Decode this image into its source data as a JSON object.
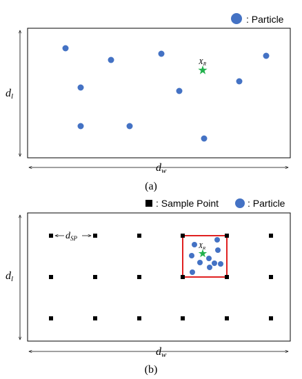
{
  "colors": {
    "particle": "#4472C4",
    "target_star": "#22B14C",
    "sample_point": "#000000",
    "highlight_box": "#E02020",
    "frame": "#000000"
  },
  "icons": {
    "particle": "circle-marker",
    "sample_point": "square-marker",
    "target": "star-marker",
    "dimension": "double-headed-arrow"
  },
  "panel_a": {
    "legend_label": ": Particle",
    "target_label": "X",
    "target_sub": "R",
    "dim_height_base": "d",
    "dim_height_sub": "l",
    "dim_width_base": "d",
    "dim_width_sub": "w",
    "caption": "(a)"
  },
  "panel_b": {
    "legend_sample_label": ": Sample Point",
    "legend_particle_label": ": Particle",
    "spacing_base": "d",
    "spacing_sub": "SP",
    "target_label": "X",
    "target_sub": "R",
    "dim_height_base": "d",
    "dim_height_sub": "l",
    "dim_width_base": "d",
    "dim_width_sub": "w",
    "caption": "(b)"
  }
}
